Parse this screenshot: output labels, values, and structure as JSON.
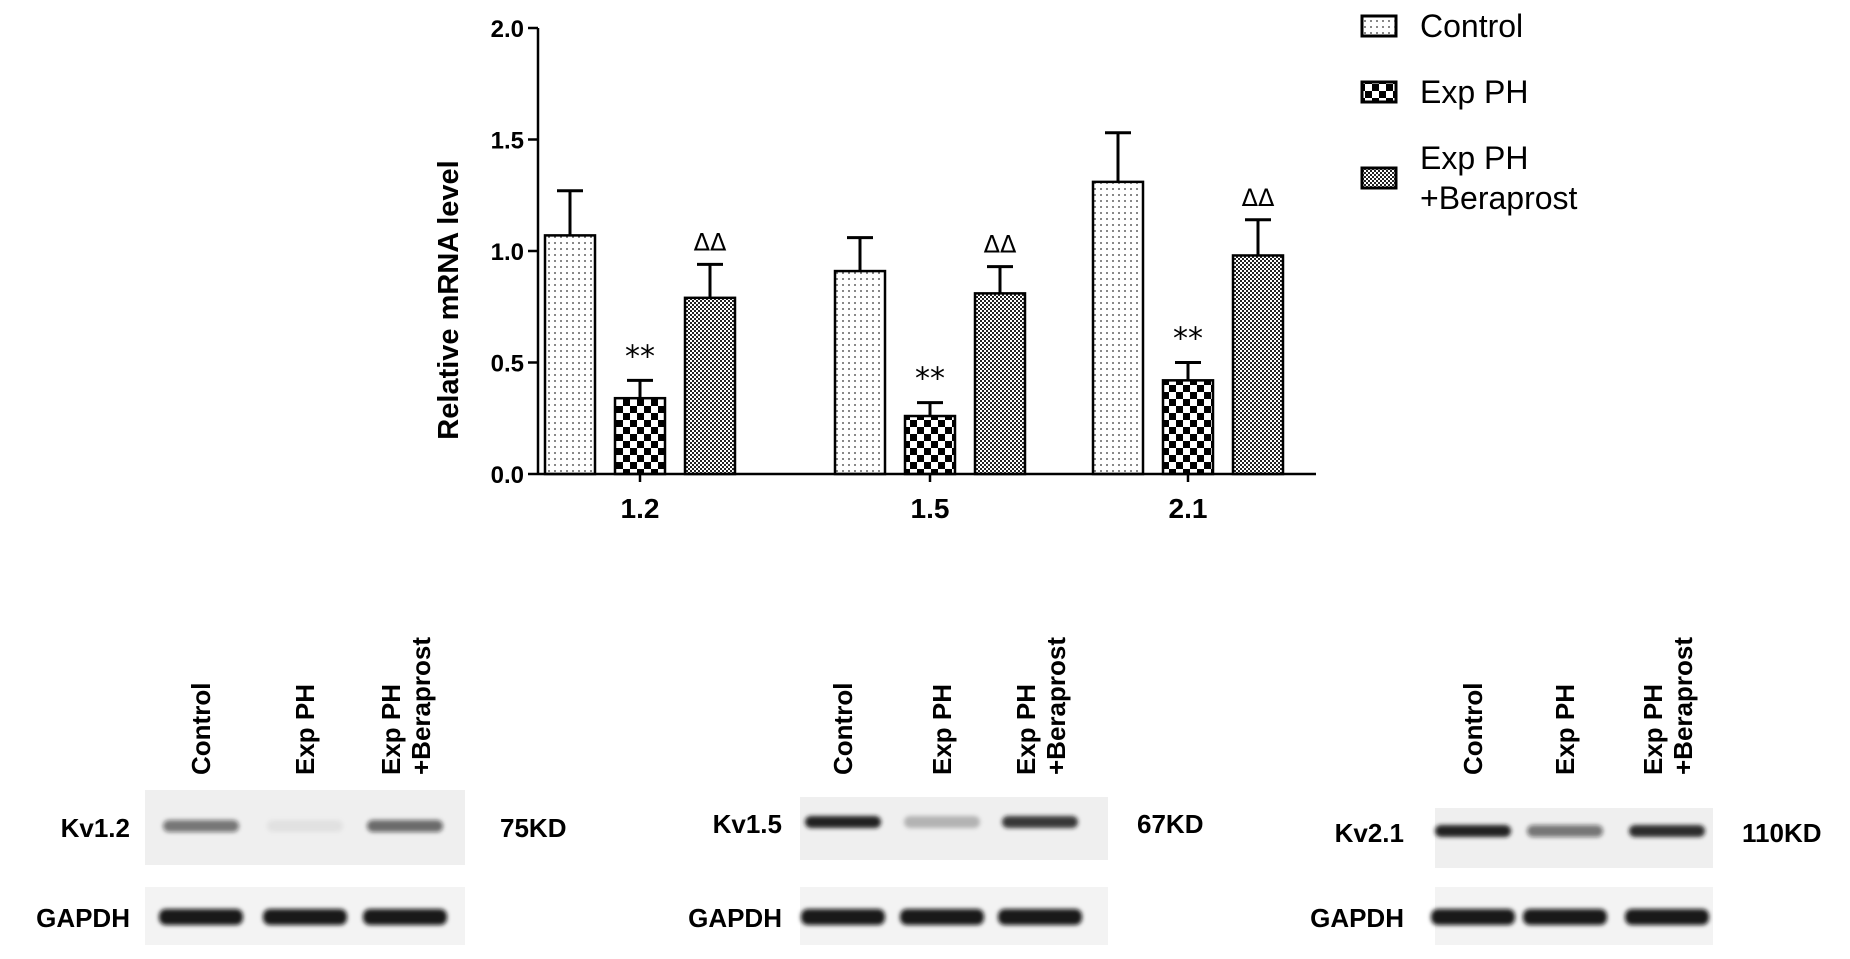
{
  "chart_data": {
    "type": "bar",
    "ylabel": "Relative mRNA level",
    "ylim": [
      0,
      2.0
    ],
    "yticks": [
      "0.0",
      "0.5",
      "1.0",
      "1.5",
      "2.0"
    ],
    "categories": [
      "1.2",
      "1.5",
      "2.1"
    ],
    "legend_position": "top-right",
    "series": [
      {
        "name": "Control",
        "values": [
          1.07,
          0.91,
          1.31
        ],
        "errors": [
          0.2,
          0.15,
          0.22
        ],
        "significance": [
          "",
          "",
          ""
        ]
      },
      {
        "name": "Exp PH",
        "values": [
          0.34,
          0.26,
          0.42
        ],
        "errors": [
          0.08,
          0.06,
          0.08
        ],
        "significance": [
          "**",
          "**",
          "**"
        ]
      },
      {
        "name": "Exp PH +Beraprost",
        "name_lines": [
          "Exp PH",
          "+Beraprost"
        ],
        "values": [
          0.79,
          0.81,
          0.98
        ],
        "errors": [
          0.15,
          0.12,
          0.16
        ],
        "significance": [
          "ΔΔ",
          "ΔΔ",
          "ΔΔ"
        ]
      }
    ]
  },
  "blots": [
    {
      "protein": "Kv1.2",
      "size": "75KD",
      "loading": "GAPDH",
      "lanes": [
        "Control",
        "Exp PH",
        "Exp PH",
        "+Beraprost"
      ],
      "band_intensity": [
        0.55,
        0.06,
        0.6
      ]
    },
    {
      "protein": "Kv1.5",
      "size": "67KD",
      "loading": "GAPDH",
      "lanes": [
        "Control",
        "Exp PH",
        "Exp PH",
        "+Beraprost"
      ],
      "band_intensity": [
        0.95,
        0.25,
        0.85
      ]
    },
    {
      "protein": "Kv2.1",
      "size": "110KD",
      "loading": "GAPDH",
      "lanes": [
        "Control",
        "Exp PH",
        "Exp PH",
        "+Beraprost"
      ],
      "band_intensity": [
        0.95,
        0.55,
        0.9
      ]
    }
  ]
}
